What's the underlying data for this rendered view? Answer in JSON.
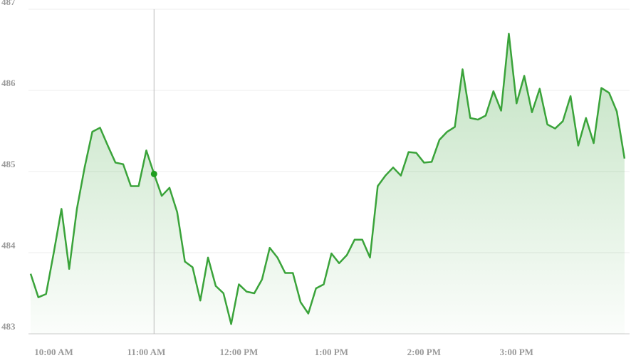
{
  "chart_data": {
    "type": "line",
    "categories": [
      null,
      null,
      null,
      "10:00 AM",
      null,
      null,
      null,
      null,
      null,
      null,
      null,
      null,
      null,
      null,
      null,
      "11:00 AM",
      null,
      null,
      null,
      null,
      null,
      null,
      null,
      null,
      null,
      null,
      null,
      "12:00 PM",
      null,
      null,
      null,
      null,
      null,
      null,
      null,
      null,
      null,
      null,
      null,
      "1:00 PM",
      null,
      null,
      null,
      null,
      null,
      null,
      null,
      null,
      null,
      null,
      null,
      "2:00 PM",
      null,
      null,
      null,
      null,
      null,
      null,
      null,
      null,
      null,
      null,
      null,
      "3:00 PM",
      null,
      null,
      null,
      null,
      null,
      null,
      null,
      null,
      null,
      null,
      null,
      null,
      null,
      null
    ],
    "series": [
      {
        "color": "#3aa33a",
        "values": [
          483.74,
          483.45,
          483.49,
          484.0,
          484.54,
          483.8,
          484.54,
          485.05,
          485.49,
          485.54,
          485.32,
          485.11,
          485.09,
          484.82,
          484.82,
          485.26,
          484.97,
          484.7,
          484.8,
          484.5,
          483.89,
          483.82,
          483.41,
          483.94,
          483.59,
          483.5,
          483.12,
          483.61,
          483.52,
          483.5,
          483.67,
          484.06,
          483.94,
          483.75,
          483.75,
          483.39,
          483.25,
          483.56,
          483.61,
          483.99,
          483.87,
          483.97,
          484.16,
          484.16,
          483.94,
          484.82,
          484.95,
          485.05,
          484.95,
          485.24,
          485.23,
          485.11,
          485.12,
          485.39,
          485.49,
          485.55,
          486.26,
          485.66,
          485.64,
          485.69,
          485.99,
          485.75,
          486.7,
          485.84,
          486.18,
          485.73,
          486.02,
          485.58,
          485.53,
          485.62,
          485.93,
          485.32,
          485.66,
          485.35,
          486.03,
          485.97,
          485.74,
          485.16
        ]
      }
    ],
    "ylim": [
      483,
      487
    ],
    "yticks": [
      483,
      484,
      485,
      486,
      487
    ],
    "grid": true,
    "hover_index": 16
  }
}
